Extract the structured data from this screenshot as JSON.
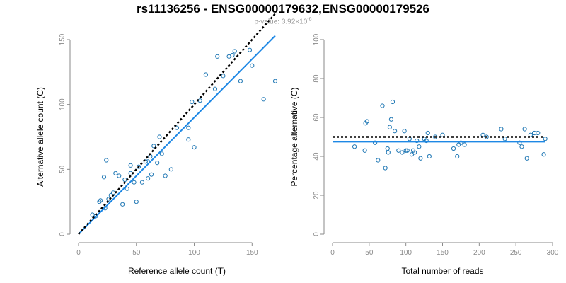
{
  "title": "rs11136256 - ENSG00000179632,ENSG00000179526",
  "subtitle": {
    "prefix": "p-value: 3.92×10",
    "exponent": "-6"
  },
  "colors": {
    "points": "#1f77b4",
    "fit_line": "#1e88e5",
    "reference_line": "#000000",
    "axis": "#8a8a8a"
  },
  "chart_data": [
    {
      "type": "scatter",
      "title": "",
      "xlabel": "Reference allele count (T)",
      "ylabel": "Alternative allele count (C)",
      "xlim": [
        0,
        170
      ],
      "ylim": [
        0,
        150
      ],
      "xticks": [
        0,
        50,
        100,
        150
      ],
      "yticks": [
        0,
        50,
        100,
        150
      ],
      "grid": false,
      "series": [
        {
          "role": "points",
          "x": [
            12,
            15,
            18,
            19,
            22,
            23,
            24,
            26,
            28,
            30,
            32,
            35,
            38,
            40,
            42,
            45,
            45,
            48,
            50,
            52,
            55,
            58,
            60,
            60,
            62,
            63,
            65,
            68,
            70,
            72,
            75,
            80,
            85,
            95,
            95,
            98,
            100,
            105,
            110,
            118,
            120,
            125,
            130,
            133,
            135,
            140,
            148,
            150,
            160,
            170
          ],
          "y": [
            15,
            14,
            25,
            26,
            44,
            20,
            57,
            27,
            30,
            32,
            47,
            45,
            23,
            42,
            35,
            53,
            47,
            40,
            25,
            52,
            40,
            56,
            43,
            56,
            60,
            46,
            68,
            55,
            75,
            62,
            45,
            50,
            82,
            82,
            73,
            102,
            67,
            103,
            123,
            112,
            137,
            122,
            137,
            138,
            141,
            118,
            142,
            130,
            104,
            118
          ]
        },
        {
          "role": "fit_line",
          "x": [
            0,
            170
          ],
          "y": [
            0,
            153
          ]
        },
        {
          "role": "reference_line",
          "x": [
            0,
            170
          ],
          "y": [
            0,
            170
          ]
        }
      ]
    },
    {
      "type": "scatter",
      "title": "",
      "xlabel": "Total number of reads",
      "ylabel": "Percentage alternative (C)",
      "xlim": [
        0,
        300
      ],
      "ylim": [
        0,
        100
      ],
      "xticks": [
        0,
        50,
        100,
        150,
        200,
        250,
        300
      ],
      "yticks": [
        0,
        20,
        40,
        60,
        80,
        100
      ],
      "grid": false,
      "series": [
        {
          "role": "points",
          "x": [
            30,
            44,
            45,
            47,
            58,
            62,
            68,
            72,
            75,
            76,
            78,
            80,
            82,
            85,
            90,
            95,
            98,
            100,
            102,
            105,
            108,
            110,
            112,
            115,
            118,
            120,
            125,
            128,
            130,
            132,
            140,
            150,
            165,
            170,
            172,
            175,
            180,
            205,
            210,
            230,
            235,
            255,
            258,
            262,
            265,
            270,
            275,
            280,
            288,
            290
          ],
          "y": [
            45,
            43,
            57,
            58,
            47,
            38,
            66,
            34,
            44,
            42,
            55,
            59,
            68,
            53,
            43,
            42,
            53,
            43,
            43,
            49,
            41,
            43,
            42,
            48,
            45,
            39,
            49,
            48,
            52,
            40,
            50,
            51,
            44,
            40,
            46,
            47,
            46,
            51,
            50,
            54,
            49,
            47,
            45,
            54,
            39,
            51,
            52,
            52,
            41,
            49
          ]
        },
        {
          "role": "fit_line",
          "x": [
            0,
            290
          ],
          "y": [
            47.5,
            47.5
          ]
        },
        {
          "role": "reference_line",
          "x": [
            0,
            290
          ],
          "y": [
            50,
            50
          ]
        }
      ]
    }
  ]
}
